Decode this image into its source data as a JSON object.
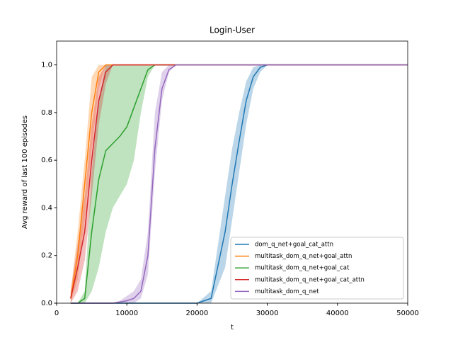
{
  "chart_data": {
    "type": "line",
    "title": "Login-User",
    "x_label": "t",
    "y_label": "Avg reward of last 100 episodes",
    "x": [
      2000,
      3000,
      4000,
      5000,
      6000,
      7000,
      8000,
      9000,
      10000,
      11000,
      12000,
      13000,
      14000,
      15000,
      16000,
      17000,
      18000,
      20000,
      22000,
      24000,
      25000,
      26000,
      27000,
      28000,
      29000,
      30000,
      35000,
      40000,
      45000,
      50000
    ],
    "xlim": [
      0,
      50000
    ],
    "xticks": [
      0,
      10000,
      20000,
      30000,
      40000,
      50000
    ],
    "ylim": [
      0,
      1.1
    ],
    "yticks": [
      {
        "value": 0,
        "label": "0.0"
      },
      0.2,
      0.4,
      0.6,
      0.8,
      {
        "value": 1,
        "label": "1.0"
      }
    ],
    "legend": "lower right",
    "series": [
      {
        "name": "dom_q_net+goal_cat_attn",
        "color": "#1f77b4",
        "values": [
          0,
          0,
          0,
          0,
          0,
          0,
          0,
          0,
          0,
          0,
          0,
          0,
          0,
          0,
          0,
          0,
          0,
          0,
          0.02,
          0.3,
          0.5,
          0.68,
          0.85,
          0.95,
          0.99,
          1,
          1,
          1,
          1,
          1
        ],
        "lower": [
          0,
          0,
          0,
          0,
          0,
          0,
          0,
          0,
          0,
          0,
          0,
          0,
          0,
          0,
          0,
          0,
          0,
          0,
          0,
          0.15,
          0.35,
          0.55,
          0.75,
          0.9,
          0.97,
          1,
          1,
          1,
          1,
          1
        ],
        "upper": [
          0,
          0,
          0,
          0,
          0,
          0,
          0,
          0,
          0,
          0,
          0,
          0,
          0,
          0,
          0,
          0,
          0,
          0,
          0.05,
          0.45,
          0.65,
          0.8,
          0.93,
          0.99,
          1,
          1,
          1,
          1,
          1,
          1
        ]
      },
      {
        "name": "multitask_dom_q_net+goal_attn",
        "color": "#ff7f0e",
        "values": [
          0.02,
          0.2,
          0.5,
          0.8,
          0.97,
          1,
          1,
          1,
          1,
          1,
          1,
          1,
          1,
          1,
          1,
          1,
          1,
          1,
          1,
          1,
          1,
          1,
          1,
          1,
          1,
          1,
          1,
          1,
          1,
          1
        ],
        "lower": [
          0,
          0.1,
          0.35,
          0.65,
          0.9,
          1,
          1,
          1,
          1,
          1,
          1,
          1,
          1,
          1,
          1,
          1,
          1,
          1,
          1,
          1,
          1,
          1,
          1,
          1,
          1,
          1,
          1,
          1,
          1,
          1
        ],
        "upper": [
          0.05,
          0.3,
          0.6,
          0.95,
          1,
          1,
          1,
          1,
          1,
          1,
          1,
          1,
          1,
          1,
          1,
          1,
          1,
          1,
          1,
          1,
          1,
          1,
          1,
          1,
          1,
          1,
          1,
          1,
          1,
          1
        ]
      },
      {
        "name": "multitask_dom_q_net+goal_cat",
        "color": "#2ca02c",
        "values": [
          0,
          0,
          0.02,
          0.3,
          0.52,
          0.64,
          0.67,
          0.7,
          0.74,
          0.82,
          0.9,
          0.98,
          1,
          1,
          1,
          1,
          1,
          1,
          1,
          1,
          1,
          1,
          1,
          1,
          1,
          1,
          1,
          1,
          1,
          1
        ],
        "lower": [
          0,
          0,
          0,
          0.05,
          0.15,
          0.3,
          0.4,
          0.45,
          0.5,
          0.6,
          0.8,
          0.95,
          1,
          1,
          1,
          1,
          1,
          1,
          1,
          1,
          1,
          1,
          1,
          1,
          1,
          1,
          1,
          1,
          1,
          1
        ],
        "upper": [
          0,
          0,
          0.05,
          0.55,
          0.85,
          1,
          1,
          1,
          1,
          1,
          1,
          1,
          1,
          1,
          1,
          1,
          1,
          1,
          1,
          1,
          1,
          1,
          1,
          1,
          1,
          1,
          1,
          1,
          1,
          1
        ]
      },
      {
        "name": "multitask_dom_q_net+goal_cat_attn",
        "color": "#d62728",
        "values": [
          0.02,
          0.15,
          0.3,
          0.6,
          0.85,
          0.97,
          1,
          1,
          1,
          1,
          1,
          1,
          1,
          1,
          1,
          1,
          1,
          1,
          1,
          1,
          1,
          1,
          1,
          1,
          1,
          1,
          1,
          1,
          1,
          1
        ],
        "lower": [
          0,
          0.05,
          0.18,
          0.45,
          0.75,
          0.92,
          1,
          1,
          1,
          1,
          1,
          1,
          1,
          1,
          1,
          1,
          1,
          1,
          1,
          1,
          1,
          1,
          1,
          1,
          1,
          1,
          1,
          1,
          1,
          1
        ],
        "upper": [
          0.05,
          0.25,
          0.45,
          0.75,
          0.95,
          1,
          1,
          1,
          1,
          1,
          1,
          1,
          1,
          1,
          1,
          1,
          1,
          1,
          1,
          1,
          1,
          1,
          1,
          1,
          1,
          1,
          1,
          1,
          1,
          1
        ]
      },
      {
        "name": "multitask_dom_q_net",
        "color": "#9467bd",
        "values": [
          0,
          0,
          0,
          0,
          0,
          0,
          0,
          0.005,
          0.01,
          0.02,
          0.05,
          0.2,
          0.65,
          0.9,
          0.98,
          1,
          1,
          1,
          1,
          1,
          1,
          1,
          1,
          1,
          1,
          1,
          1,
          1,
          1,
          1
        ],
        "lower": [
          0,
          0,
          0,
          0,
          0,
          0,
          0,
          0,
          0,
          0,
          0.02,
          0.12,
          0.55,
          0.85,
          0.97,
          1,
          1,
          1,
          1,
          1,
          1,
          1,
          1,
          1,
          1,
          1,
          1,
          1,
          1,
          1
        ],
        "upper": [
          0,
          0,
          0,
          0,
          0,
          0,
          0,
          0.01,
          0.03,
          0.05,
          0.1,
          0.3,
          0.8,
          0.97,
          1,
          1,
          1,
          1,
          1,
          1,
          1,
          1,
          1,
          1,
          1,
          1,
          1,
          1,
          1,
          1
        ]
      }
    ]
  }
}
